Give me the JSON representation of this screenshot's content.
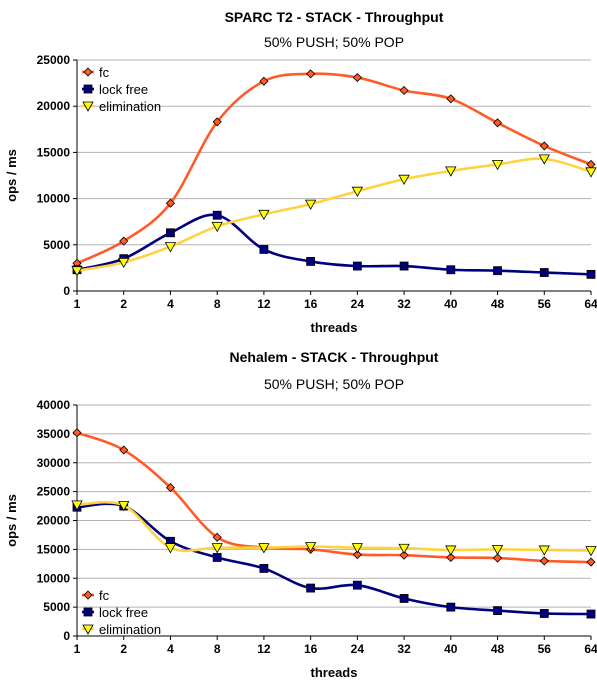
{
  "chart_data": [
    {
      "type": "line",
      "title": "SPARC T2 - STACK - Throughput",
      "subtitle": "50% PUSH; 50% POP",
      "xlabel": "threads",
      "ylabel": "ops / ms",
      "categories": [
        "1",
        "2",
        "4",
        "8",
        "12",
        "16",
        "24",
        "32",
        "40",
        "48",
        "56",
        "64"
      ],
      "ylim": [
        0,
        25000
      ],
      "yticks": [
        0,
        5000,
        10000,
        15000,
        20000,
        25000
      ],
      "grid": "horizontal",
      "legend_position": "top-left",
      "series": [
        {
          "name": "fc",
          "color": "#ff5a28",
          "marker": "diamond",
          "marker_color": "#ff5a28",
          "values": [
            3000,
            5400,
            9500,
            18300,
            22700,
            23500,
            23100,
            21700,
            20800,
            18200,
            15700,
            13700
          ]
        },
        {
          "name": "lock free",
          "color": "#000080",
          "marker": "square",
          "marker_color": "#000080",
          "values": [
            2300,
            3500,
            6300,
            8200,
            4500,
            3200,
            2700,
            2700,
            2300,
            2200,
            2000,
            1800
          ]
        },
        {
          "name": "elimination",
          "color": "#ffd33d",
          "marker": "triangle-down",
          "marker_color": "#ffff00",
          "values": [
            2200,
            3100,
            4800,
            7000,
            8300,
            9400,
            10800,
            12100,
            13000,
            13700,
            14300,
            12900
          ]
        }
      ]
    },
    {
      "type": "line",
      "title": "Nehalem - STACK - Throughput",
      "subtitle": "50% PUSH; 50% POP",
      "xlabel": "threads",
      "ylabel": "ops / ms",
      "categories": [
        "1",
        "2",
        "4",
        "8",
        "12",
        "16",
        "24",
        "32",
        "40",
        "48",
        "56",
        "64"
      ],
      "ylim": [
        0,
        40000
      ],
      "yticks": [
        0,
        5000,
        10000,
        15000,
        20000,
        25000,
        30000,
        35000,
        40000
      ],
      "grid": "horizontal",
      "legend_position": "bottom-left",
      "series": [
        {
          "name": "fc",
          "color": "#ff5a28",
          "marker": "diamond",
          "marker_color": "#ff5a28",
          "values": [
            35200,
            32200,
            25700,
            17100,
            15300,
            15000,
            14100,
            14000,
            13600,
            13500,
            13000,
            12800
          ]
        },
        {
          "name": "lock free",
          "color": "#000080",
          "marker": "square",
          "marker_color": "#000080",
          "values": [
            22300,
            22500,
            16400,
            13600,
            11700,
            8300,
            8800,
            6500,
            5000,
            4400,
            3900,
            3800
          ]
        },
        {
          "name": "elimination",
          "color": "#ffd33d",
          "marker": "triangle-down",
          "marker_color": "#ffff00",
          "values": [
            22700,
            22600,
            15300,
            15300,
            15300,
            15500,
            15300,
            15200,
            14900,
            15000,
            14900,
            14800
          ]
        }
      ]
    }
  ]
}
